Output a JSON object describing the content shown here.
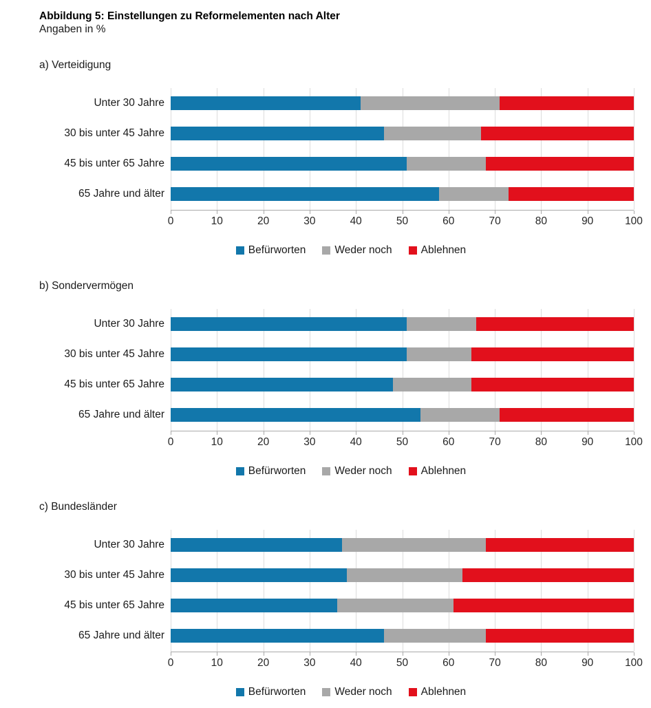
{
  "page": {
    "title": "Abbildung 5: Einstellungen zu Reformelementen nach Alter",
    "subtitle": "Angaben in %"
  },
  "colors": {
    "series": [
      "#1277ab",
      "#a8a8a8",
      "#e2101c"
    ],
    "gridline": "#dcdcdc",
    "axis_line": "#a9a9a9",
    "text": "#1a1a1a"
  },
  "legend": [
    "Befürworten",
    "Weder noch",
    "Ablehnen"
  ],
  "axis": {
    "min": 0,
    "max": 100,
    "step": 10,
    "tick_labels": [
      "0",
      "10",
      "20",
      "30",
      "40",
      "50",
      "60",
      "70",
      "80",
      "90",
      "100"
    ]
  },
  "chart_data": [
    {
      "type": "bar",
      "orientation": "horizontal-stacked",
      "title": "a) Verteidigung",
      "categories": [
        "Unter 30 Jahre",
        "30 bis unter 45 Jahre",
        "45 bis unter 65 Jahre",
        "65 Jahre und älter"
      ],
      "series": [
        {
          "name": "Befürworten",
          "values": [
            41,
            46,
            51,
            58
          ]
        },
        {
          "name": "Weder noch",
          "values": [
            30,
            21,
            17,
            15
          ]
        },
        {
          "name": "Ablehnen",
          "values": [
            29,
            33,
            32,
            27
          ]
        }
      ],
      "xlim": [
        0,
        100
      ],
      "xlabel": "",
      "ylabel": "",
      "grid": "vertical",
      "legend_position": "bottom"
    },
    {
      "type": "bar",
      "orientation": "horizontal-stacked",
      "title": "b) Sondervermögen",
      "categories": [
        "Unter 30 Jahre",
        "30 bis unter 45 Jahre",
        "45 bis unter 65 Jahre",
        "65 Jahre und älter"
      ],
      "series": [
        {
          "name": "Befürworten",
          "values": [
            51,
            51,
            48,
            54
          ]
        },
        {
          "name": "Weder noch",
          "values": [
            15,
            14,
            17,
            17
          ]
        },
        {
          "name": "Ablehnen",
          "values": [
            34,
            35,
            35,
            29
          ]
        }
      ],
      "xlim": [
        0,
        100
      ],
      "xlabel": "",
      "ylabel": "",
      "grid": "vertical",
      "legend_position": "bottom"
    },
    {
      "type": "bar",
      "orientation": "horizontal-stacked",
      "title": "c) Bundesländer",
      "categories": [
        "Unter 30 Jahre",
        "30 bis unter 45 Jahre",
        "45 bis unter 65 Jahre",
        "65 Jahre und älter"
      ],
      "series": [
        {
          "name": "Befürworten",
          "values": [
            37,
            38,
            36,
            46
          ]
        },
        {
          "name": "Weder noch",
          "values": [
            31,
            25,
            25,
            22
          ]
        },
        {
          "name": "Ablehnen",
          "values": [
            32,
            37,
            39,
            32
          ]
        }
      ],
      "xlim": [
        0,
        100
      ],
      "xlabel": "",
      "ylabel": "",
      "grid": "vertical",
      "legend_position": "bottom"
    }
  ]
}
